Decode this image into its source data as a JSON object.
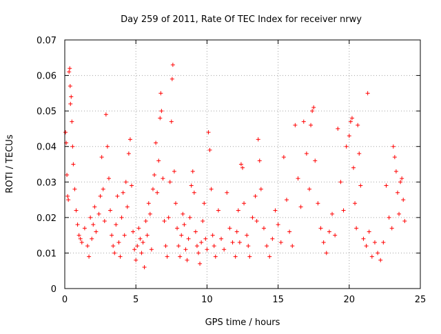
{
  "chart_data": {
    "type": "scatter",
    "title": "Day 259 of 2011, Rate Of TEC Index for receiver nrwy",
    "xlabel": "GPS time / hours",
    "ylabel": "ROTI / TECUs",
    "xlim": [
      0,
      25
    ],
    "ylim": [
      0,
      0.07
    ],
    "xticks": [
      "0",
      "5",
      "10",
      "15",
      "20",
      "25"
    ],
    "yticks": [
      "0",
      "0.01",
      "0.02",
      "0.03",
      "0.04",
      "0.05",
      "0.06",
      "0.07"
    ],
    "grid": true,
    "marker": "+",
    "color": "#ff0000",
    "series": [
      {
        "points": [
          [
            0.05,
            0.044
          ],
          [
            0.1,
            0.041
          ],
          [
            0.15,
            0.032
          ],
          [
            0.2,
            0.026
          ],
          [
            0.25,
            0.025
          ],
          [
            0.3,
            0.061
          ],
          [
            0.35,
            0.062
          ],
          [
            0.38,
            0.057
          ],
          [
            0.4,
            0.052
          ],
          [
            0.45,
            0.054
          ],
          [
            0.5,
            0.047
          ],
          [
            0.55,
            0.04
          ],
          [
            0.6,
            0.035
          ],
          [
            0.7,
            0.028
          ],
          [
            0.8,
            0.022
          ],
          [
            0.9,
            0.018
          ],
          [
            1.0,
            0.015
          ],
          [
            1.1,
            0.014
          ],
          [
            1.2,
            0.013
          ],
          [
            1.4,
            0.017
          ],
          [
            1.6,
            0.012
          ],
          [
            1.7,
            0.009
          ],
          [
            1.8,
            0.02
          ],
          [
            1.9,
            0.014
          ],
          [
            2.0,
            0.018
          ],
          [
            2.1,
            0.023
          ],
          [
            2.2,
            0.016
          ],
          [
            2.4,
            0.021
          ],
          [
            2.5,
            0.026
          ],
          [
            2.6,
            0.037
          ],
          [
            2.7,
            0.028
          ],
          [
            2.8,
            0.019
          ],
          [
            2.9,
            0.049
          ],
          [
            3.0,
            0.04
          ],
          [
            3.1,
            0.031
          ],
          [
            3.2,
            0.022
          ],
          [
            3.3,
            0.015
          ],
          [
            3.4,
            0.012
          ],
          [
            3.5,
            0.01
          ],
          [
            3.6,
            0.018
          ],
          [
            3.7,
            0.026
          ],
          [
            3.8,
            0.013
          ],
          [
            3.9,
            0.009
          ],
          [
            4.0,
            0.02
          ],
          [
            4.1,
            0.027
          ],
          [
            4.2,
            0.015
          ],
          [
            4.3,
            0.03
          ],
          [
            4.4,
            0.023
          ],
          [
            4.5,
            0.038
          ],
          [
            4.6,
            0.042
          ],
          [
            4.7,
            0.029
          ],
          [
            4.8,
            0.016
          ],
          [
            4.9,
            0.011
          ],
          [
            5.0,
            0.008
          ],
          [
            5.1,
            0.012
          ],
          [
            5.2,
            0.017
          ],
          [
            5.3,
            0.014
          ],
          [
            5.4,
            0.01
          ],
          [
            5.5,
            0.013
          ],
          [
            5.6,
            0.006
          ],
          [
            5.7,
            0.019
          ],
          [
            5.8,
            0.015
          ],
          [
            5.9,
            0.024
          ],
          [
            6.0,
            0.021
          ],
          [
            6.1,
            0.011
          ],
          [
            6.2,
            0.028
          ],
          [
            6.3,
            0.032
          ],
          [
            6.4,
            0.041
          ],
          [
            6.5,
            0.027
          ],
          [
            6.6,
            0.036
          ],
          [
            6.7,
            0.048
          ],
          [
            6.75,
            0.055
          ],
          [
            6.8,
            0.05
          ],
          [
            6.9,
            0.031
          ],
          [
            7.0,
            0.019
          ],
          [
            7.1,
            0.012
          ],
          [
            7.2,
            0.009
          ],
          [
            7.3,
            0.02
          ],
          [
            7.4,
            0.03
          ],
          [
            7.5,
            0.047
          ],
          [
            7.55,
            0.059
          ],
          [
            7.6,
            0.063
          ],
          [
            7.7,
            0.033
          ],
          [
            7.8,
            0.024
          ],
          [
            7.9,
            0.017
          ],
          [
            8.0,
            0.012
          ],
          [
            8.1,
            0.009
          ],
          [
            8.2,
            0.015
          ],
          [
            8.3,
            0.021
          ],
          [
            8.4,
            0.018
          ],
          [
            8.5,
            0.011
          ],
          [
            8.6,
            0.008
          ],
          [
            8.7,
            0.014
          ],
          [
            8.8,
            0.02
          ],
          [
            8.9,
            0.029
          ],
          [
            9.0,
            0.033
          ],
          [
            9.1,
            0.027
          ],
          [
            9.2,
            0.016
          ],
          [
            9.3,
            0.012
          ],
          [
            9.4,
            0.01
          ],
          [
            9.5,
            0.007
          ],
          [
            9.6,
            0.013
          ],
          [
            9.7,
            0.019
          ],
          [
            9.8,
            0.024
          ],
          [
            9.9,
            0.014
          ],
          [
            10.0,
            0.011
          ],
          [
            10.1,
            0.044
          ],
          [
            10.2,
            0.039
          ],
          [
            10.3,
            0.028
          ],
          [
            10.4,
            0.015
          ],
          [
            10.5,
            0.012
          ],
          [
            10.6,
            0.009
          ],
          [
            10.8,
            0.022
          ],
          [
            11.0,
            0.014
          ],
          [
            11.2,
            0.011
          ],
          [
            11.4,
            0.027
          ],
          [
            11.6,
            0.017
          ],
          [
            11.8,
            0.013
          ],
          [
            12.0,
            0.009
          ],
          [
            12.1,
            0.016
          ],
          [
            12.2,
            0.022
          ],
          [
            12.3,
            0.013
          ],
          [
            12.4,
            0.035
          ],
          [
            12.5,
            0.034
          ],
          [
            12.6,
            0.024
          ],
          [
            12.8,
            0.015
          ],
          [
            12.9,
            0.012
          ],
          [
            13.0,
            0.009
          ],
          [
            13.2,
            0.02
          ],
          [
            13.4,
            0.026
          ],
          [
            13.5,
            0.019
          ],
          [
            13.6,
            0.042
          ],
          [
            13.7,
            0.036
          ],
          [
            13.8,
            0.028
          ],
          [
            14.0,
            0.017
          ],
          [
            14.2,
            0.012
          ],
          [
            14.4,
            0.009
          ],
          [
            14.6,
            0.014
          ],
          [
            14.8,
            0.022
          ],
          [
            15.0,
            0.018
          ],
          [
            15.2,
            0.013
          ],
          [
            15.4,
            0.037
          ],
          [
            15.6,
            0.025
          ],
          [
            15.8,
            0.016
          ],
          [
            16.0,
            0.012
          ],
          [
            16.2,
            0.046
          ],
          [
            16.4,
            0.031
          ],
          [
            16.6,
            0.023
          ],
          [
            16.8,
            0.047
          ],
          [
            17.0,
            0.038
          ],
          [
            17.2,
            0.028
          ],
          [
            17.3,
            0.046
          ],
          [
            17.4,
            0.05
          ],
          [
            17.5,
            0.051
          ],
          [
            17.6,
            0.036
          ],
          [
            17.8,
            0.024
          ],
          [
            18.0,
            0.017
          ],
          [
            18.2,
            0.013
          ],
          [
            18.4,
            0.01
          ],
          [
            18.6,
            0.016
          ],
          [
            18.8,
            0.021
          ],
          [
            19.0,
            0.015
          ],
          [
            19.2,
            0.045
          ],
          [
            19.4,
            0.03
          ],
          [
            19.6,
            0.022
          ],
          [
            19.8,
            0.04
          ],
          [
            20.0,
            0.043
          ],
          [
            20.1,
            0.047
          ],
          [
            20.2,
            0.048
          ],
          [
            20.3,
            0.034
          ],
          [
            20.4,
            0.024
          ],
          [
            20.5,
            0.017
          ],
          [
            20.6,
            0.046
          ],
          [
            20.7,
            0.038
          ],
          [
            20.8,
            0.029
          ],
          [
            21.0,
            0.014
          ],
          [
            21.2,
            0.012
          ],
          [
            21.3,
            0.055
          ],
          [
            21.4,
            0.016
          ],
          [
            21.6,
            0.009
          ],
          [
            21.8,
            0.013
          ],
          [
            22.0,
            0.01
          ],
          [
            22.2,
            0.008
          ],
          [
            22.4,
            0.013
          ],
          [
            22.6,
            0.029
          ],
          [
            22.8,
            0.02
          ],
          [
            23.0,
            0.017
          ],
          [
            23.1,
            0.04
          ],
          [
            23.2,
            0.037
          ],
          [
            23.3,
            0.033
          ],
          [
            23.4,
            0.027
          ],
          [
            23.5,
            0.021
          ],
          [
            23.6,
            0.03
          ],
          [
            23.7,
            0.031
          ],
          [
            23.8,
            0.025
          ],
          [
            23.9,
            0.019
          ]
        ]
      }
    ]
  }
}
